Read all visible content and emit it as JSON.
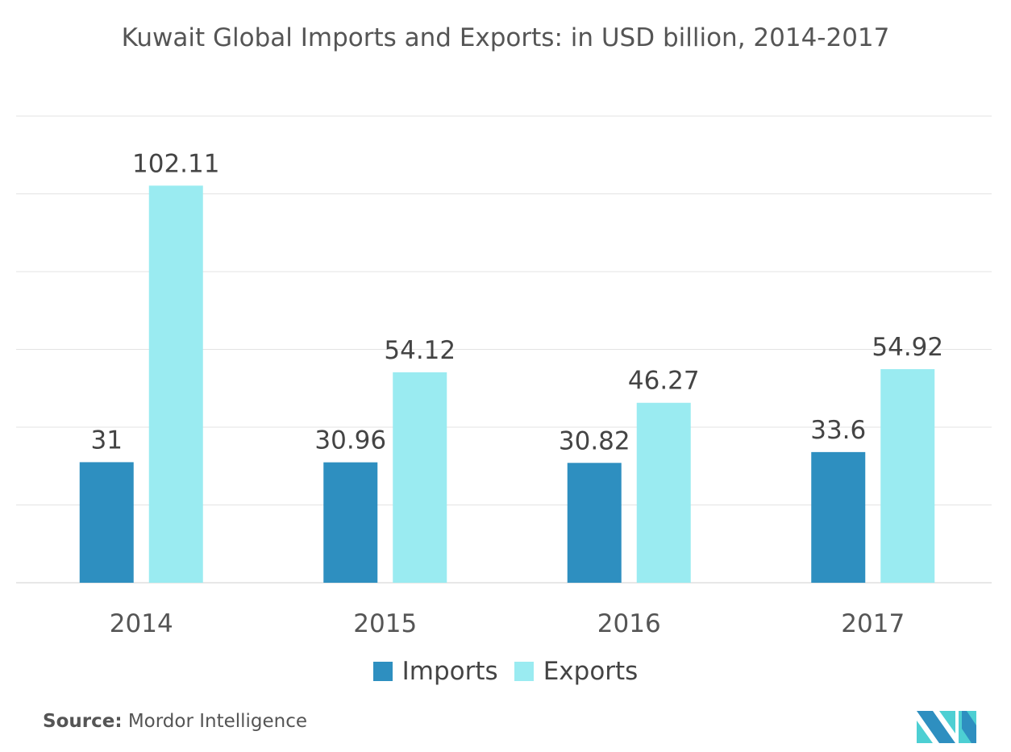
{
  "chart_data": {
    "type": "bar",
    "title": "Kuwait Global Imports and Exports: in USD billion, 2014-2017",
    "categories": [
      "2014",
      "2015",
      "2016",
      "2017"
    ],
    "series": [
      {
        "name": "Imports",
        "values": [
          31,
          30.96,
          30.82,
          33.6
        ],
        "labels": [
          "31",
          "30.96",
          "30.82",
          "33.6"
        ],
        "color": "#2e8fc0"
      },
      {
        "name": "Exports",
        "values": [
          102.11,
          54.12,
          46.27,
          54.92
        ],
        "labels": [
          "102.11",
          "54.12",
          "46.27",
          "54.92"
        ],
        "color": "#9aebf1"
      }
    ],
    "ylim": [
      0,
      120
    ],
    "ytick_step": 20,
    "grid": true,
    "yaxis_labels_shown": false,
    "legend": "bottom"
  },
  "source": {
    "label": "Source:",
    "text": "Mordor Intelligence"
  },
  "logo": {
    "text": "Mordor Intelligence",
    "colors": [
      "#2e8fc0",
      "#4dcfd3"
    ]
  }
}
